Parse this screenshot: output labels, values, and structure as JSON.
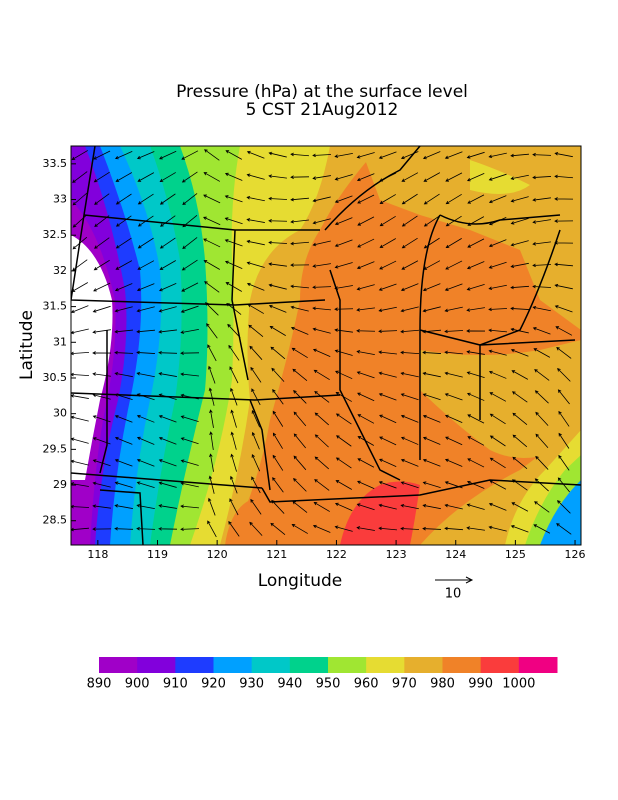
{
  "chart_data": {
    "type": "map",
    "title": "Pressure (hPa) at the surface level",
    "subtitle": "5 CST 21Aug2012",
    "xlabel": "Longitude",
    "ylabel": "Latitude",
    "xlim": [
      117.55,
      126.1
    ],
    "ylim": [
      28.16,
      33.75
    ],
    "xticks": [
      118,
      119,
      120,
      121,
      122,
      123,
      124,
      125,
      126
    ],
    "yticks": [
      28.5,
      29,
      29.5,
      30,
      30.5,
      31,
      31.5,
      32,
      32.5,
      33,
      33.5
    ],
    "vector_reference": 10,
    "colorbar": {
      "levels": [
        890,
        900,
        910,
        920,
        930,
        940,
        950,
        960,
        970,
        980,
        990,
        1000
      ],
      "colors": [
        "#a000c8",
        "#8200dc",
        "#1e3cff",
        "#00a0ff",
        "#00c8c8",
        "#00d28c",
        "#a0e632",
        "#e6dc32",
        "#e6af2d",
        "#f08228",
        "#fa3c3c",
        "#f00082"
      ]
    }
  }
}
